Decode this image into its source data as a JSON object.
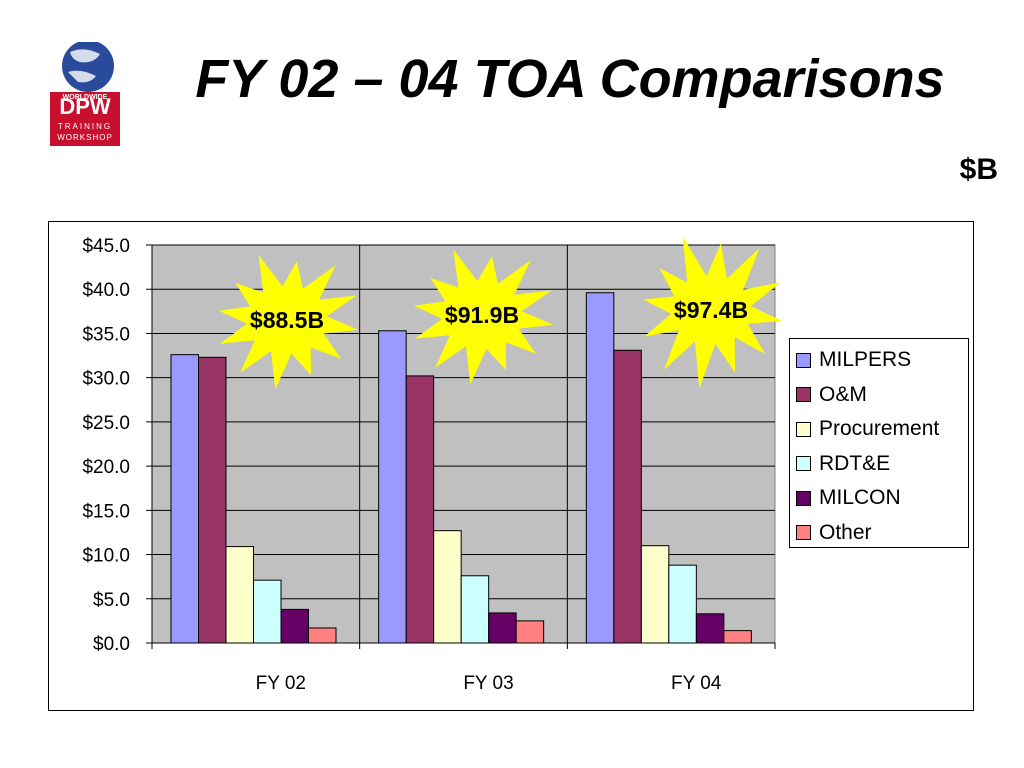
{
  "slide": {
    "title": "FY 02 – 04 TOA Comparisons",
    "unit_label": "$B",
    "logo_text": [
      "WORLDWIDE",
      "DPW",
      "TRAINING",
      "WORKSHOP"
    ]
  },
  "chart_data": {
    "type": "bar",
    "categories": [
      "FY 02",
      "FY 03",
      "FY 04"
    ],
    "series": [
      {
        "name": "MILPERS",
        "color": "#9999ff",
        "values": [
          32.6,
          35.3,
          39.6
        ]
      },
      {
        "name": "O&M",
        "color": "#993366",
        "values": [
          32.3,
          30.2,
          33.1
        ]
      },
      {
        "name": "Procurement",
        "color": "#ffffcc",
        "values": [
          10.9,
          12.7,
          11.0
        ]
      },
      {
        "name": "RDT&E",
        "color": "#ccffff",
        "values": [
          7.1,
          7.6,
          8.8
        ]
      },
      {
        "name": "MILCON",
        "color": "#660066",
        "values": [
          3.8,
          3.4,
          3.3
        ]
      },
      {
        "name": "Other",
        "color": "#ff8080",
        "values": [
          1.7,
          2.5,
          1.4
        ]
      }
    ],
    "ylim": [
      0,
      45
    ],
    "ytick_labels": [
      "$0.0",
      "$5.0",
      "$10.0",
      "$15.0",
      "$20.0",
      "$25.0",
      "$30.0",
      "$35.0",
      "$40.0",
      "$45.0"
    ],
    "grid": true,
    "plot_background": "#c0c0c0",
    "legend_position": "right",
    "annotations": [
      "$88.5B",
      "$91.9B",
      "$97.4B"
    ],
    "annotation_color": "#ffff00"
  }
}
